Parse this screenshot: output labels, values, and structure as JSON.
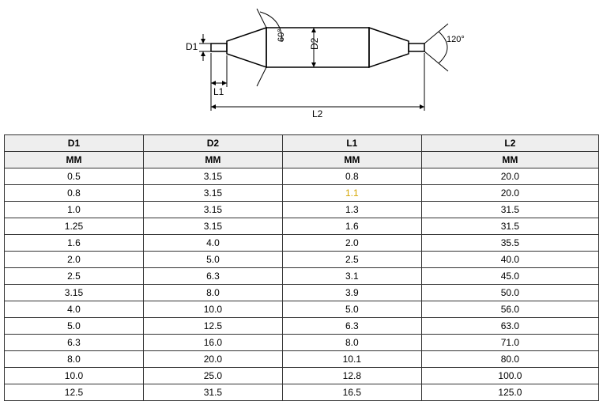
{
  "diagram": {
    "labels": {
      "d1": "D1",
      "d2": "D2",
      "l1": "L1",
      "l2": "L2",
      "angle1": "60°",
      "angle2": "120°"
    },
    "stroke_color": "#000000",
    "stroke_width": 1.5
  },
  "table": {
    "columns": [
      "D1",
      "D2",
      "L1",
      "L2"
    ],
    "units": [
      "MM",
      "MM",
      "MM",
      "MM"
    ],
    "rows": [
      [
        "0.5",
        "3.15",
        "0.8",
        "20.0"
      ],
      [
        "0.8",
        "3.15",
        "1.1",
        "20.0"
      ],
      [
        "1.0",
        "3.15",
        "1.3",
        "31.5"
      ],
      [
        "1.25",
        "3.15",
        "1.6",
        "31.5"
      ],
      [
        "1.6",
        "4.0",
        "2.0",
        "35.5"
      ],
      [
        "2.0",
        "5.0",
        "2.5",
        "40.0"
      ],
      [
        "2.5",
        "6.3",
        "3.1",
        "45.0"
      ],
      [
        "3.15",
        "8.0",
        "3.9",
        "50.0"
      ],
      [
        "4.0",
        "10.0",
        "5.0",
        "56.0"
      ],
      [
        "5.0",
        "12.5",
        "6.3",
        "63.0"
      ],
      [
        "6.3",
        "16.0",
        "8.0",
        "71.0"
      ],
      [
        "8.0",
        "20.0",
        "10.1",
        "80.0"
      ],
      [
        "10.0",
        "25.0",
        "12.8",
        "100.0"
      ],
      [
        "12.5",
        "31.5",
        "16.5",
        "125.0"
      ]
    ],
    "highlight_cells": [
      {
        "row": 1,
        "col": 2
      }
    ],
    "header_bg": "#eeeeee",
    "border_color": "#333333",
    "font_size": 12
  }
}
